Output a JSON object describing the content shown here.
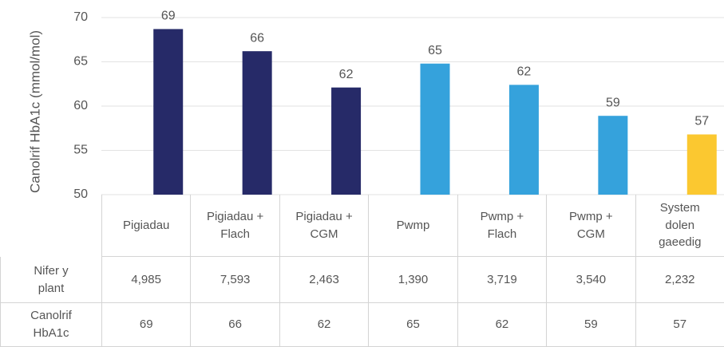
{
  "chart_data": {
    "type": "bar",
    "y_label": "Canolrif HbA1c (mmol/mol)",
    "categories": [
      "Pigiadau",
      "Pigiadau + Flach",
      "Pigiadau + CGM",
      "Pwmp",
      "Pwmp + Flach",
      "Pwmp + CGM",
      "System dolen gaeedig"
    ],
    "values": [
      68.7,
      66.2,
      62.1,
      64.8,
      62.4,
      58.9,
      56.8
    ],
    "value_labels": [
      "69",
      "66",
      "62",
      "65",
      "62",
      "59",
      "57"
    ],
    "colors": [
      "#262a68",
      "#262a68",
      "#262a68",
      "#35a2dc",
      "#35a2dc",
      "#35a2dc",
      "#fbc830"
    ],
    "ylim": [
      50,
      70
    ],
    "yticks": [
      50,
      55,
      60,
      65,
      70
    ],
    "grid": true
  },
  "table": {
    "row_headers": [
      "Nifer y plant",
      "Canolrif HbA1c"
    ],
    "rows": [
      [
        "4,985",
        "7,593",
        "2,463",
        "1,390",
        "3,719",
        "3,540",
        "2,232"
      ],
      [
        "69",
        "66",
        "62",
        "65",
        "62",
        "59",
        "57"
      ]
    ]
  }
}
